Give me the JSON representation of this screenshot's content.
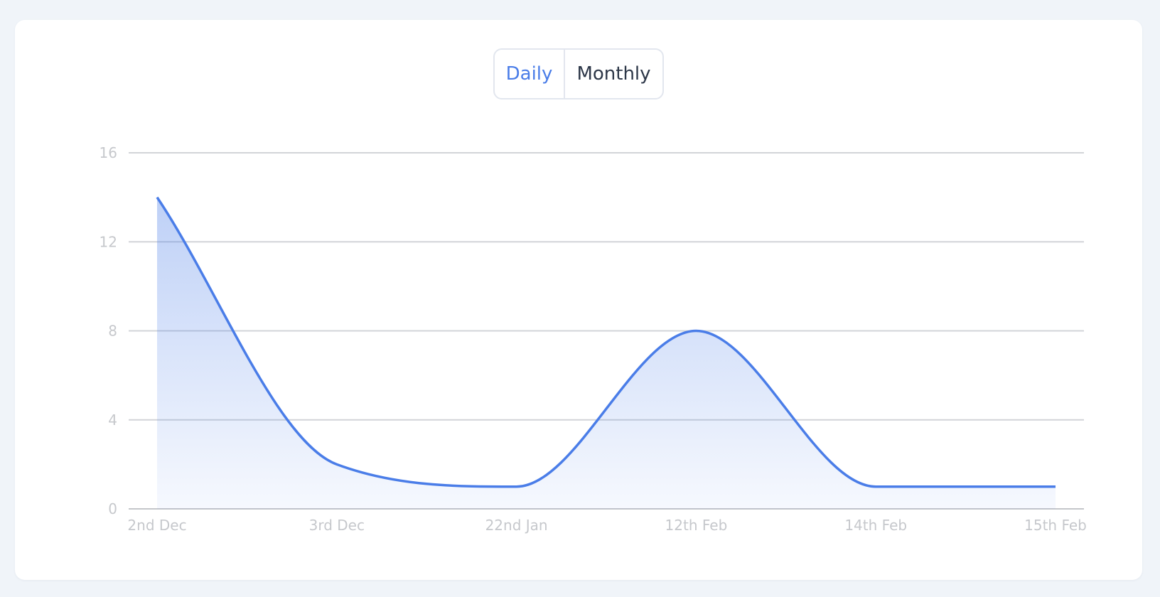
{
  "toggle": {
    "options": [
      "Daily",
      "Monthly"
    ],
    "selected": "Daily"
  },
  "colors": {
    "accent": "#4a7de8",
    "text": "#2d3748",
    "tick": "#c6c8cc",
    "grid": "#d2d4d8",
    "background": "#f0f4f9",
    "card": "#ffffff"
  },
  "chart_data": {
    "type": "area",
    "title": "",
    "xlabel": "",
    "ylabel": "",
    "categories": [
      "2nd Dec",
      "3rd Dec",
      "22nd Jan",
      "12th Feb",
      "14th Feb",
      "15th Feb"
    ],
    "series": [
      {
        "values": [
          14,
          2,
          1,
          8,
          1,
          1
        ],
        "color": "#4a7de8"
      }
    ],
    "ylim": [
      0,
      16
    ],
    "yticks": [
      0,
      4,
      8,
      12,
      16
    ],
    "grid": true,
    "legend": "none",
    "curve": "smooth"
  }
}
